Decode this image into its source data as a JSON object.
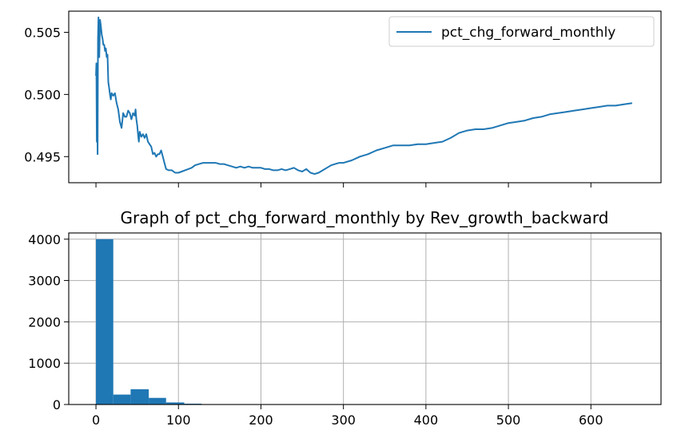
{
  "chart_data": [
    {
      "type": "line",
      "legend": "top-right",
      "grid": false,
      "xlim": [
        -33,
        685
      ],
      "ylim": [
        0.4929,
        0.5067
      ],
      "yticks": [
        "0.495",
        "0.500",
        "0.505"
      ],
      "ytick_values": [
        0.495,
        0.5,
        0.505
      ],
      "xtick_values": [
        0,
        100,
        200,
        300,
        400,
        500,
        600
      ],
      "series": [
        {
          "name": "pct_chg_forward_monthly",
          "color": "#1f77b4",
          "points": [
            [
              0,
              0.5015
            ],
            [
              0.5,
              0.5025
            ],
            [
              1,
              0.4962
            ],
            [
              1.5,
              0.5018
            ],
            [
              2,
              0.4952
            ],
            [
              2.5,
              0.5045
            ],
            [
              3,
              0.5062
            ],
            [
              4,
              0.503
            ],
            [
              5,
              0.506
            ],
            [
              6,
              0.5055
            ],
            [
              7,
              0.5048
            ],
            [
              8,
              0.5045
            ],
            [
              9,
              0.504
            ],
            [
              10,
              0.504
            ],
            [
              11,
              0.5035
            ],
            [
              12,
              0.5037
            ],
            [
              13,
              0.503
            ],
            [
              14,
              0.5032
            ],
            [
              15,
              0.501
            ],
            [
              16,
              0.5005
            ],
            [
              17,
              0.5
            ],
            [
              18,
              0.4996
            ],
            [
              19,
              0.5001
            ],
            [
              21,
              0.4999
            ],
            [
              23,
              0.5001
            ],
            [
              25,
              0.4993
            ],
            [
              27,
              0.4988
            ],
            [
              29,
              0.4978
            ],
            [
              31,
              0.4973
            ],
            [
              33,
              0.4985
            ],
            [
              35,
              0.4982
            ],
            [
              37,
              0.4982
            ],
            [
              39,
              0.4987
            ],
            [
              41,
              0.4985
            ],
            [
              43,
              0.498
            ],
            [
              45,
              0.4985
            ],
            [
              47,
              0.4983
            ],
            [
              48,
              0.4988
            ],
            [
              49,
              0.498
            ],
            [
              50,
              0.4975
            ],
            [
              51,
              0.4968
            ],
            [
              52,
              0.4962
            ],
            [
              53,
              0.497
            ],
            [
              55,
              0.4966
            ],
            [
              57,
              0.4968
            ],
            [
              59,
              0.4965
            ],
            [
              61,
              0.4968
            ],
            [
              63,
              0.4962
            ],
            [
              65,
              0.496
            ],
            [
              67,
              0.4958
            ],
            [
              69,
              0.4952
            ],
            [
              71,
              0.4953
            ],
            [
              73,
              0.495
            ],
            [
              75,
              0.4952
            ],
            [
              77,
              0.4952
            ],
            [
              79,
              0.4955
            ],
            [
              81,
              0.495
            ],
            [
              83,
              0.4945
            ],
            [
              85,
              0.494
            ],
            [
              88,
              0.4939
            ],
            [
              92,
              0.4939
            ],
            [
              96,
              0.4937
            ],
            [
              100,
              0.4937
            ],
            [
              104,
              0.4938
            ],
            [
              108,
              0.4939
            ],
            [
              112,
              0.494
            ],
            [
              116,
              0.4941
            ],
            [
              120,
              0.4943
            ],
            [
              125,
              0.4944
            ],
            [
              130,
              0.4945
            ],
            [
              135,
              0.4945
            ],
            [
              140,
              0.4945
            ],
            [
              145,
              0.4945
            ],
            [
              150,
              0.4944
            ],
            [
              155,
              0.4944
            ],
            [
              160,
              0.4943
            ],
            [
              165,
              0.4942
            ],
            [
              170,
              0.4941
            ],
            [
              175,
              0.4942
            ],
            [
              180,
              0.4941
            ],
            [
              185,
              0.4942
            ],
            [
              190,
              0.4941
            ],
            [
              195,
              0.4941
            ],
            [
              200,
              0.4941
            ],
            [
              205,
              0.494
            ],
            [
              210,
              0.494
            ],
            [
              215,
              0.4939
            ],
            [
              220,
              0.4939
            ],
            [
              225,
              0.494
            ],
            [
              230,
              0.4939
            ],
            [
              235,
              0.494
            ],
            [
              240,
              0.4941
            ],
            [
              245,
              0.4939
            ],
            [
              250,
              0.4938
            ],
            [
              255,
              0.494
            ],
            [
              260,
              0.4937
            ],
            [
              265,
              0.4936
            ],
            [
              270,
              0.4937
            ],
            [
              275,
              0.4939
            ],
            [
              280,
              0.4941
            ],
            [
              285,
              0.4943
            ],
            [
              290,
              0.4944
            ],
            [
              295,
              0.4945
            ],
            [
              300,
              0.4945
            ],
            [
              310,
              0.4947
            ],
            [
              320,
              0.495
            ],
            [
              330,
              0.4952
            ],
            [
              340,
              0.4955
            ],
            [
              350,
              0.4957
            ],
            [
              360,
              0.4959
            ],
            [
              370,
              0.4959
            ],
            [
              380,
              0.4959
            ],
            [
              390,
              0.496
            ],
            [
              400,
              0.496
            ],
            [
              410,
              0.4961
            ],
            [
              420,
              0.4962
            ],
            [
              430,
              0.4965
            ],
            [
              440,
              0.4969
            ],
            [
              450,
              0.4971
            ],
            [
              460,
              0.4972
            ],
            [
              470,
              0.4972
            ],
            [
              480,
              0.4973
            ],
            [
              490,
              0.4975
            ],
            [
              500,
              0.4977
            ],
            [
              510,
              0.4978
            ],
            [
              520,
              0.4979
            ],
            [
              530,
              0.4981
            ],
            [
              540,
              0.4982
            ],
            [
              550,
              0.4984
            ],
            [
              560,
              0.4985
            ],
            [
              570,
              0.4986
            ],
            [
              580,
              0.4987
            ],
            [
              590,
              0.4988
            ],
            [
              600,
              0.4989
            ],
            [
              610,
              0.499
            ],
            [
              620,
              0.4991
            ],
            [
              630,
              0.4991
            ],
            [
              640,
              0.4992
            ],
            [
              650,
              0.4993
            ]
          ]
        }
      ]
    },
    {
      "type": "bar",
      "title": "Graph of pct_chg_forward_monthly by Rev_growth_backward",
      "grid": true,
      "xlim": [
        -33,
        685
      ],
      "ylim": [
        0,
        4150
      ],
      "xticks": [
        "0",
        "100",
        "200",
        "300",
        "400",
        "500",
        "600"
      ],
      "xtick_values": [
        0,
        100,
        200,
        300,
        400,
        500,
        600
      ],
      "yticks": [
        "0",
        "1000",
        "2000",
        "3000",
        "4000"
      ],
      "ytick_values": [
        0,
        1000,
        2000,
        3000,
        4000
      ],
      "color": "#1f77b4",
      "bins": [
        {
          "x0": 0,
          "x1": 21,
          "value": 4000
        },
        {
          "x0": 21,
          "x1": 42,
          "value": 240
        },
        {
          "x0": 42,
          "x1": 64,
          "value": 370
        },
        {
          "x0": 64,
          "x1": 85,
          "value": 160
        },
        {
          "x0": 85,
          "x1": 107,
          "value": 50
        },
        {
          "x0": 107,
          "x1": 128,
          "value": 20
        },
        {
          "x0": 128,
          "x1": 150,
          "value": 8
        },
        {
          "x0": 150,
          "x1": 171,
          "value": 4
        },
        {
          "x0": 171,
          "x1": 193,
          "value": 3
        },
        {
          "x0": 193,
          "x1": 214,
          "value": 2
        },
        {
          "x0": 214,
          "x1": 236,
          "value": 2
        },
        {
          "x0": 236,
          "x1": 258,
          "value": 1
        },
        {
          "x0": 258,
          "x1": 280,
          "value": 1
        },
        {
          "x0": 280,
          "x1": 301,
          "value": 1
        },
        {
          "x0": 301,
          "x1": 323,
          "value": 1
        },
        {
          "x0": 323,
          "x1": 345,
          "value": 1
        },
        {
          "x0": 345,
          "x1": 366,
          "value": 1
        },
        {
          "x0": 366,
          "x1": 388,
          "value": 1
        },
        {
          "x0": 388,
          "x1": 409,
          "value": 1
        },
        {
          "x0": 409,
          "x1": 431,
          "value": 1
        },
        {
          "x0": 431,
          "x1": 452,
          "value": 1
        },
        {
          "x0": 452,
          "x1": 474,
          "value": 1
        },
        {
          "x0": 474,
          "x1": 495,
          "value": 1
        },
        {
          "x0": 495,
          "x1": 517,
          "value": 1
        },
        {
          "x0": 517,
          "x1": 538,
          "value": 1
        },
        {
          "x0": 538,
          "x1": 560,
          "value": 1
        },
        {
          "x0": 560,
          "x1": 582,
          "value": 1
        },
        {
          "x0": 582,
          "x1": 603,
          "value": 1
        },
        {
          "x0": 603,
          "x1": 625,
          "value": 1
        },
        {
          "x0": 625,
          "x1": 650,
          "value": 1
        }
      ]
    }
  ]
}
